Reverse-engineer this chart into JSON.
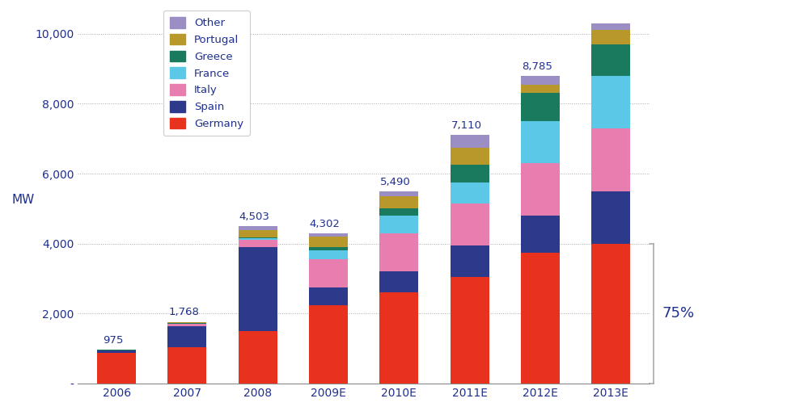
{
  "years": [
    "2006",
    "2007",
    "2008",
    "2009E",
    "2010E",
    "2011E",
    "2012E",
    "2013E"
  ],
  "totals_labels": [
    "975",
    "1,768",
    "4,503",
    "4,302",
    "5,490",
    "7,110",
    "8,785",
    null
  ],
  "series": {
    "Germany": [
      870,
      1050,
      1500,
      2250,
      2600,
      3050,
      3750,
      4000
    ],
    "Spain": [
      70,
      600,
      2400,
      500,
      600,
      900,
      1050,
      1500
    ],
    "Italy": [
      15,
      50,
      200,
      800,
      1100,
      1200,
      1500,
      1800
    ],
    "France": [
      5,
      20,
      60,
      250,
      500,
      600,
      1200,
      1500
    ],
    "Greece": [
      5,
      10,
      30,
      100,
      200,
      500,
      800,
      900
    ],
    "Portugal": [
      5,
      20,
      200,
      300,
      350,
      500,
      250,
      400
    ],
    "Other": [
      5,
      18,
      113,
      102,
      140,
      360,
      235,
      200
    ]
  },
  "colors": {
    "Germany": "#e8321e",
    "Spain": "#2d3a8c",
    "Italy": "#e87db0",
    "France": "#5bc8e8",
    "Greece": "#1a7a5e",
    "Portugal": "#b8982a",
    "Other": "#9b8ec4"
  },
  "ylabel": "MW",
  "ylim": [
    0,
    10500
  ],
  "yticks": [
    0,
    2000,
    4000,
    6000,
    8000,
    10000
  ],
  "ytick_labels": [
    "-",
    "2,000",
    "4,000",
    "6,000",
    "8,000",
    "10,000"
  ],
  "annotation_75pct": "75%",
  "annotation_75pct_ylow": 0,
  "annotation_75pct_yhigh": 4000,
  "bg_color": "#ffffff",
  "grid_color": "#aaaaaa",
  "text_color": "#1f2f8e",
  "bar_width": 0.55,
  "legend_order": [
    "Other",
    "Portugal",
    "Greece",
    "France",
    "Italy",
    "Spain",
    "Germany"
  ]
}
